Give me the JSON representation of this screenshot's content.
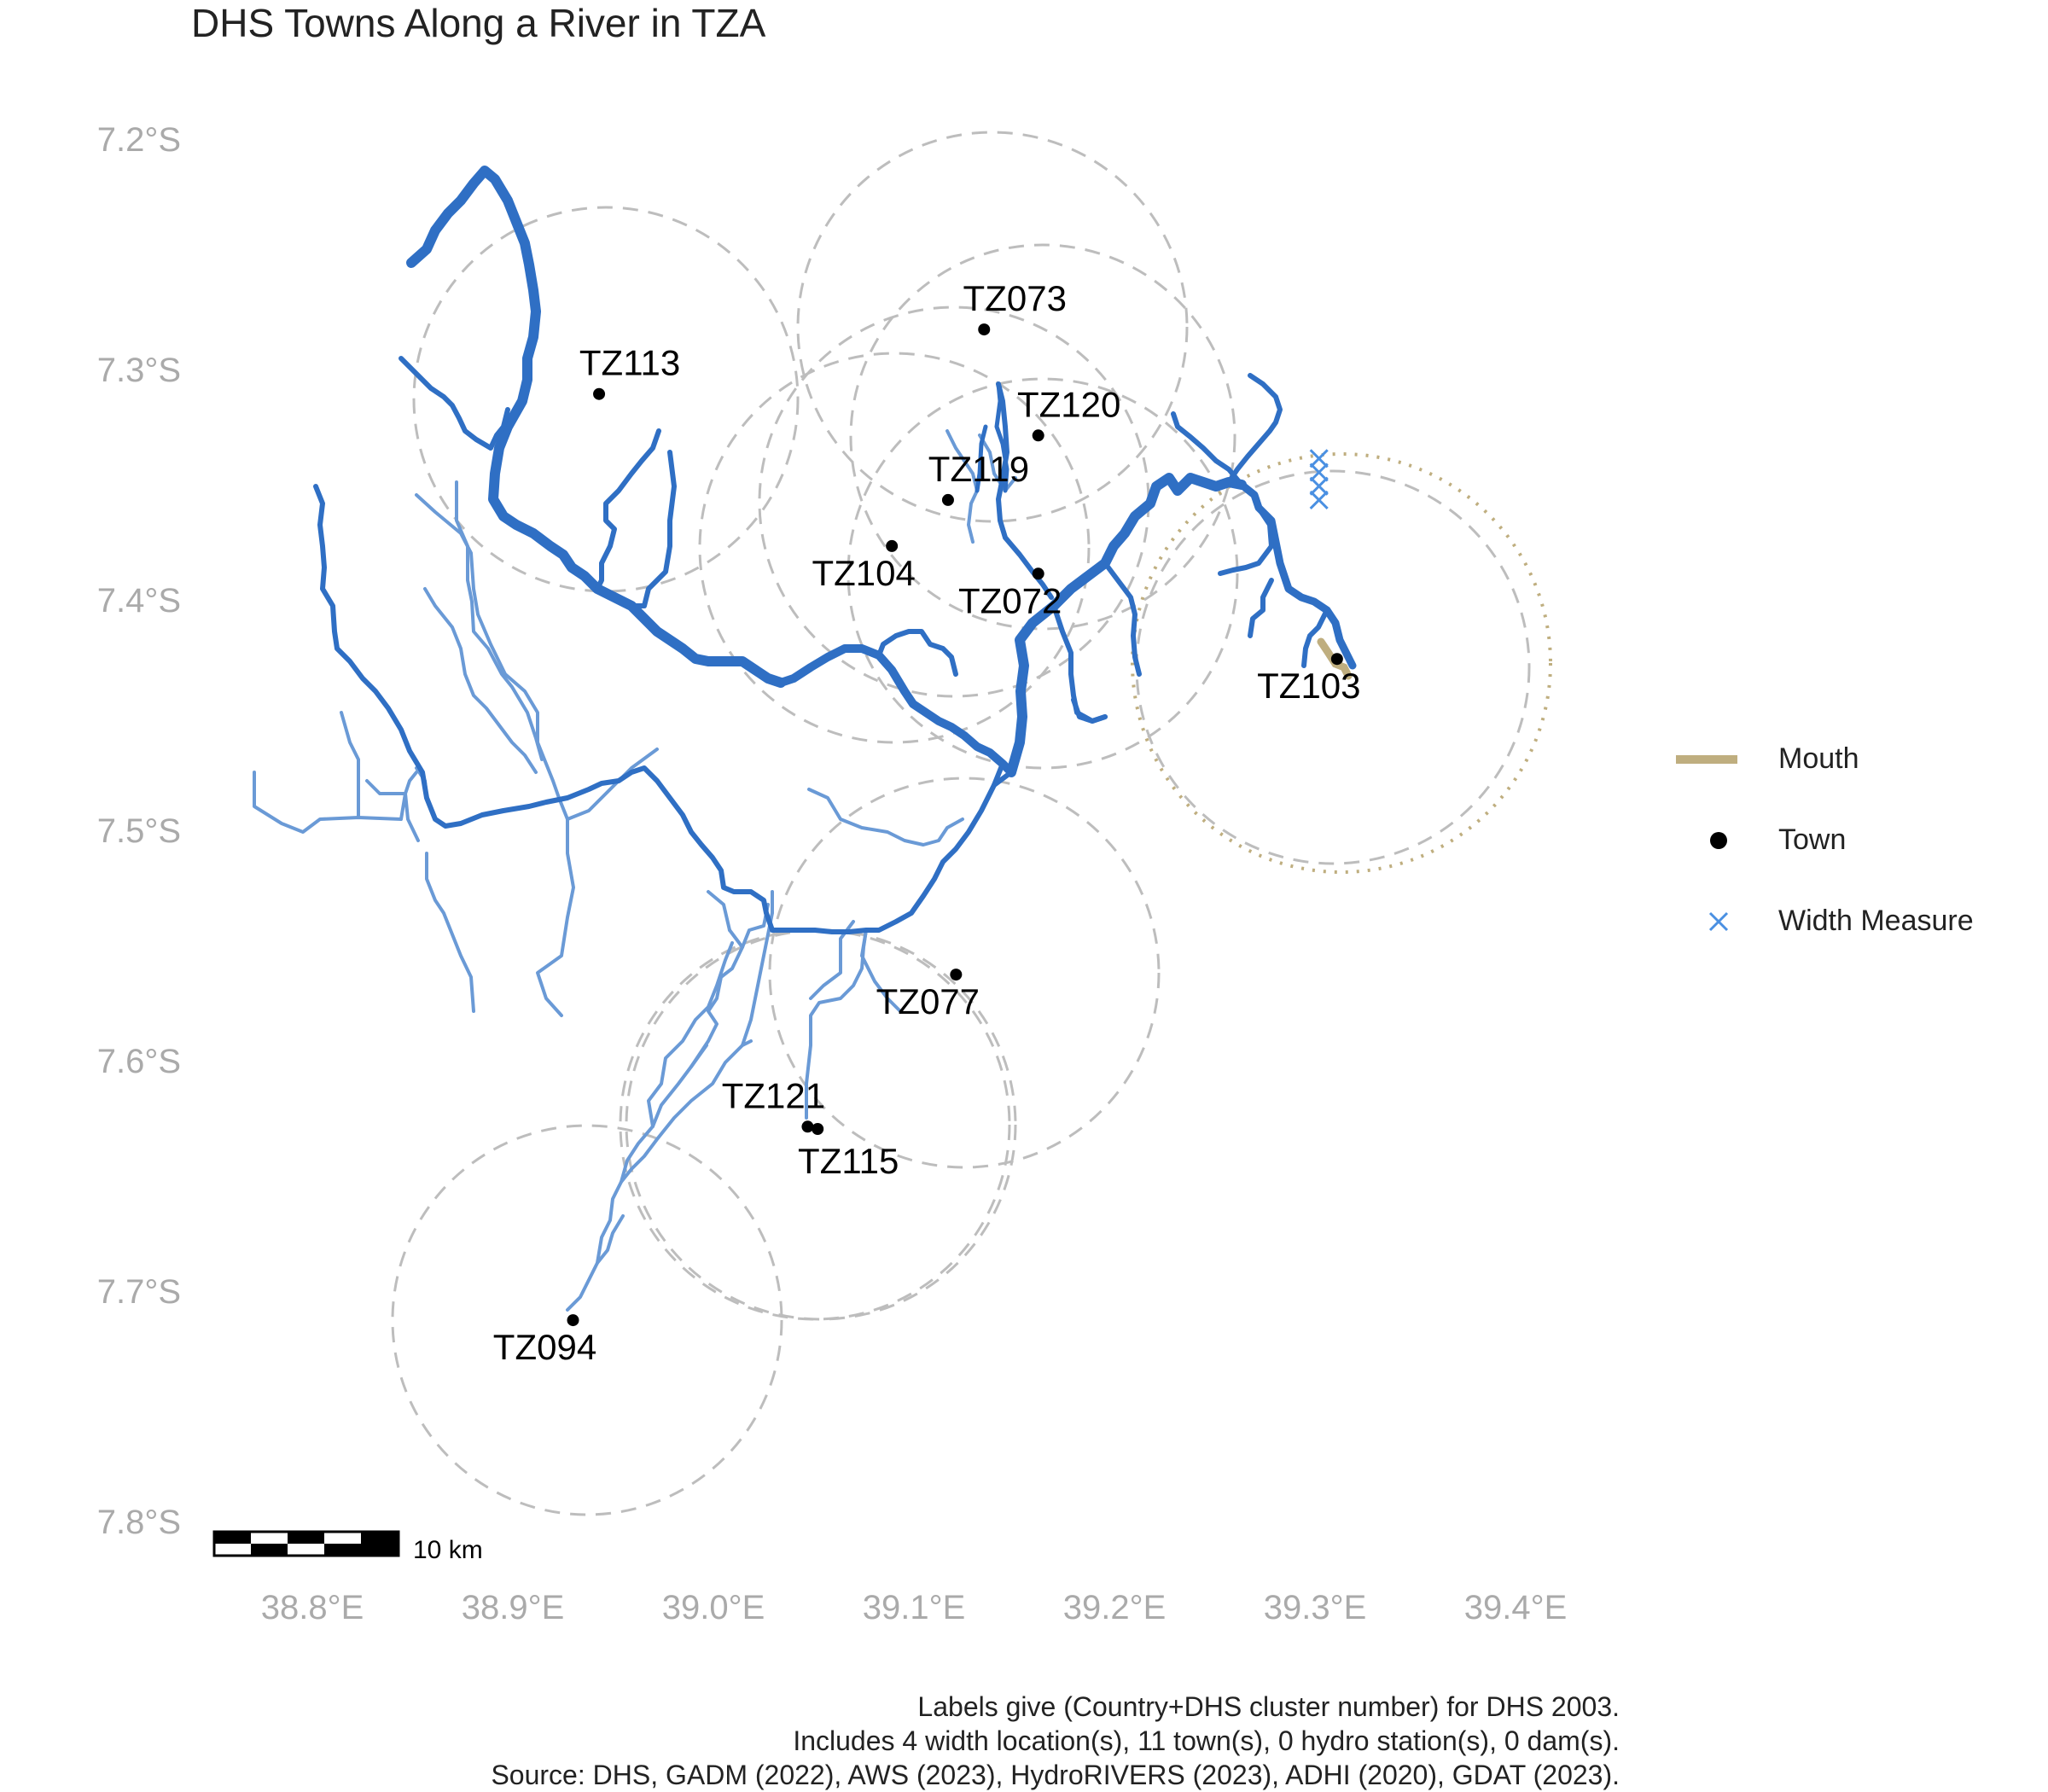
{
  "title": "DHS Towns Along a River in TZA",
  "axes": {
    "y_ticks": [
      "7.2°S",
      "7.3°S",
      "7.4°S",
      "7.5°S",
      "7.6°S",
      "7.7°S",
      "7.8°S"
    ],
    "x_ticks": [
      "38.8°E",
      "38.9°E",
      "39.0°E",
      "39.1°E",
      "39.2°E",
      "39.3°E",
      "39.4°E"
    ]
  },
  "scale_bar": {
    "label": "10 km"
  },
  "legend": [
    {
      "label": "Mouth",
      "icon": "mouth-line",
      "color": "#bfae7f"
    },
    {
      "label": "Town",
      "icon": "town-dot",
      "color": "#000000"
    },
    {
      "label": "Width Measure",
      "icon": "width-cross",
      "color": "#4a90e2"
    }
  ],
  "towns": [
    {
      "label": "TZ073",
      "lon": 39.135,
      "lat": -7.283
    },
    {
      "label": "TZ113",
      "lon": 38.943,
      "lat": -7.311
    },
    {
      "label": "TZ120",
      "lon": 39.162,
      "lat": -7.329
    },
    {
      "label": "TZ119",
      "lon": 39.117,
      "lat": -7.357
    },
    {
      "label": "TZ104",
      "lon": 39.089,
      "lat": -7.377
    },
    {
      "label": "TZ072",
      "lon": 39.162,
      "lat": -7.389
    },
    {
      "label": "TZ103",
      "lon": 39.311,
      "lat": -7.426
    },
    {
      "label": "TZ077",
      "lon": 39.121,
      "lat": -7.563
    },
    {
      "label": "TZ121",
      "lon": 39.047,
      "lat": -7.629
    },
    {
      "label": "TZ115",
      "lon": 39.052,
      "lat": -7.63
    },
    {
      "label": "TZ094",
      "lon": 38.93,
      "lat": -7.713
    }
  ],
  "width_measures": [
    {
      "lon": 39.302,
      "lat": -7.339
    },
    {
      "lon": 39.302,
      "lat": -7.345
    },
    {
      "lon": 39.302,
      "lat": -7.351
    },
    {
      "lon": 39.302,
      "lat": -7.357
    }
  ],
  "caption": [
    "Labels give (Country+DHS cluster number) for DHS 2003.",
    "Includes 4 width location(s), 11 town(s), 0 hydro station(s), 0 dam(s).",
    "Source: DHS, GADM (2022), AWS (2023), HydroRIVERS (2023), ADHI (2020), GDAT (2023)."
  ],
  "colors": {
    "river_main": "#2f6fc4",
    "river_trib": "#6a9ad6",
    "buffer": "#bdbdbd",
    "mouth_buffer": "#bfae7f",
    "axis_text": "#aaaaaa"
  }
}
